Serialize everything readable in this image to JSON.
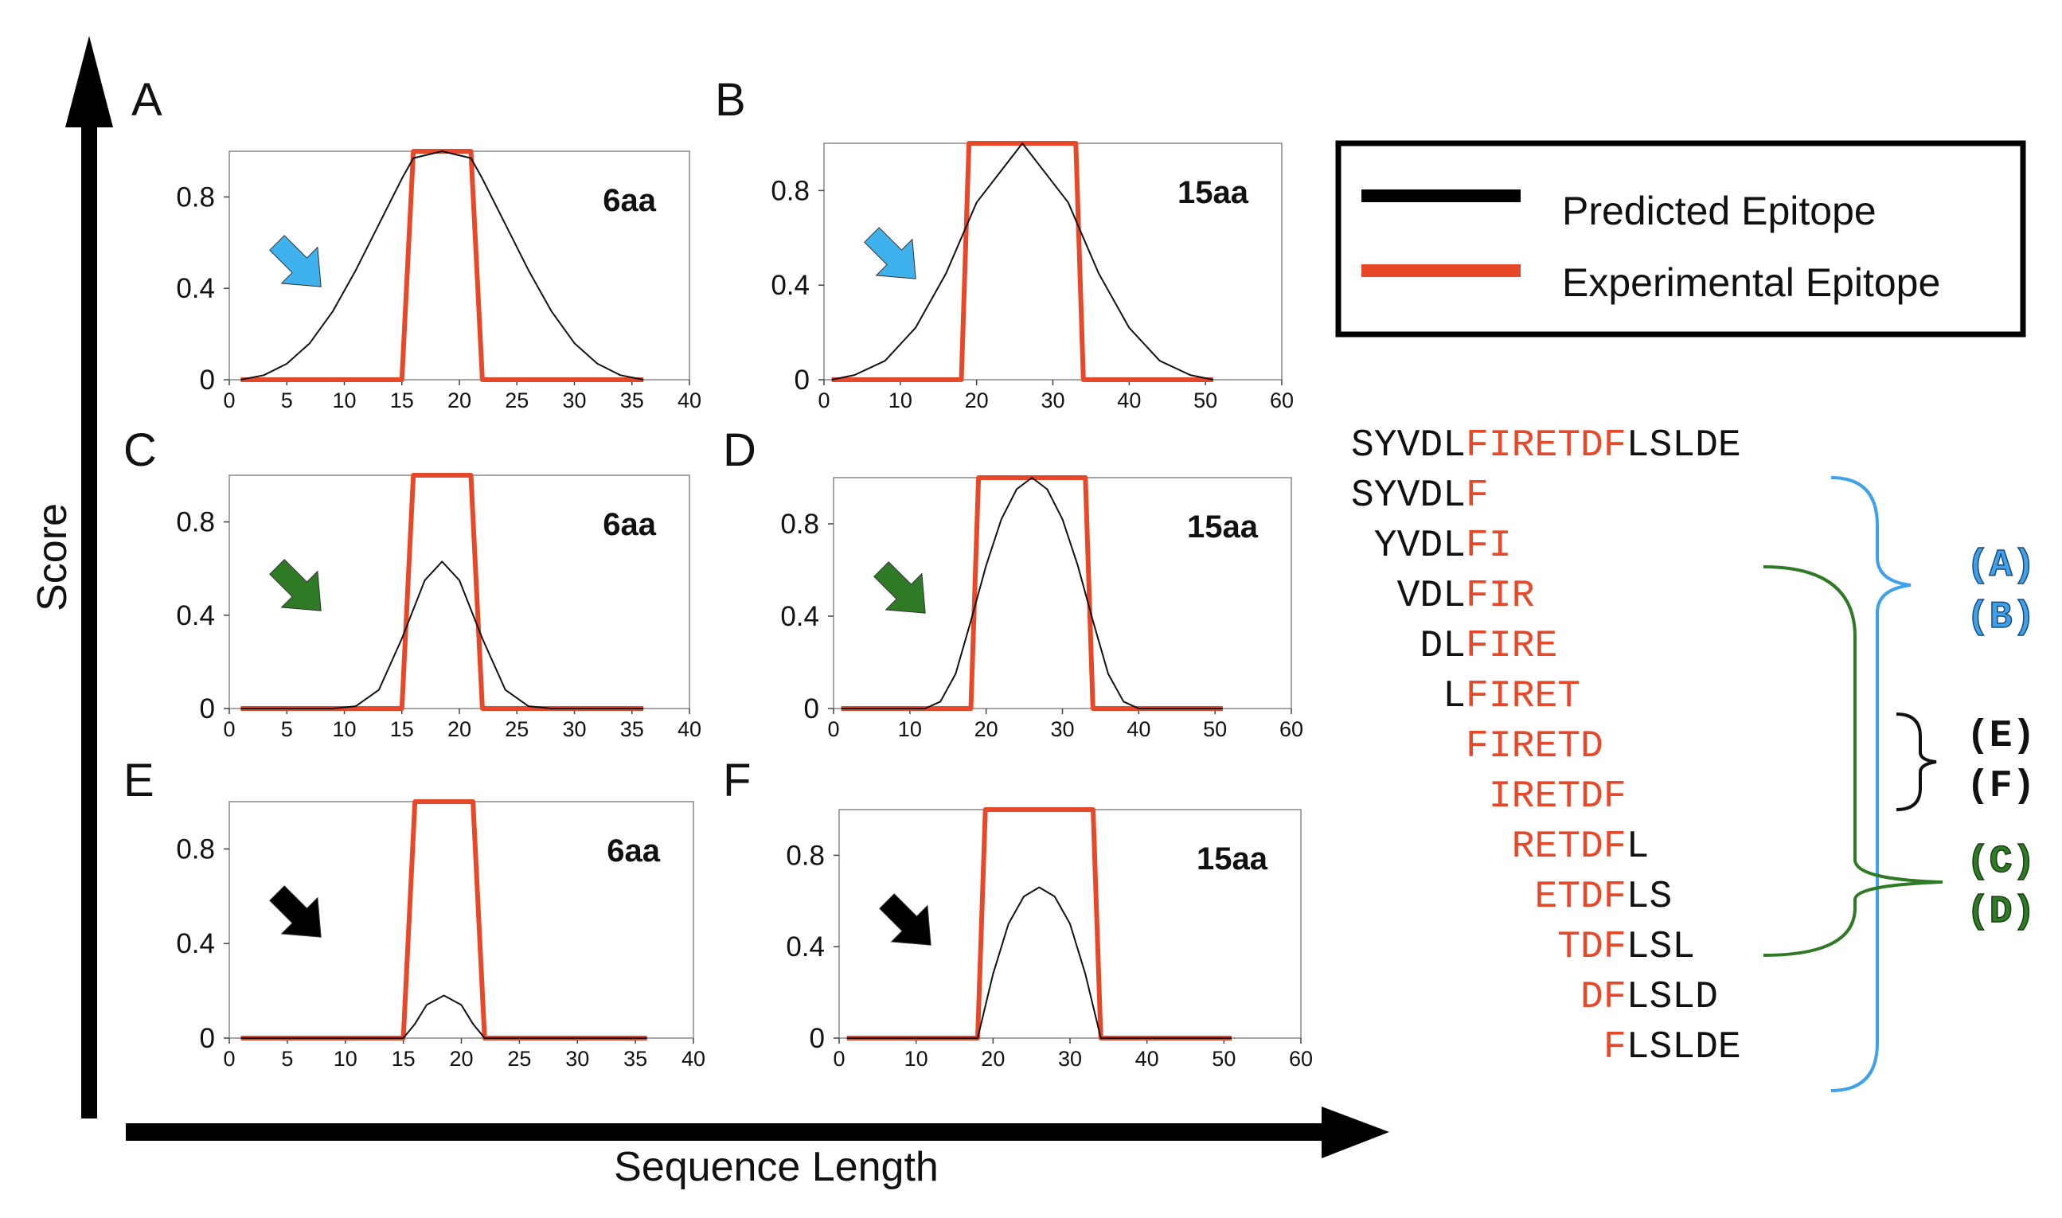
{
  "y_axis_title": "Score",
  "x_axis_title": "Sequence Length",
  "legend": [
    {
      "label": "Predicted Epitope",
      "color": "#000000"
    },
    {
      "label": "Experimental Epitope",
      "color": "#e8482a"
    }
  ],
  "colors": {
    "predicted": "#111111",
    "experimental": "#e8482a",
    "blue_arrow": "#3fb1ec",
    "green_arrow": "#2f7a25",
    "black_arrow": "#000000",
    "blue_bracket": "#3fa0ec",
    "green_bracket": "#2f7a25",
    "black_bracket": "#111111"
  },
  "chart_data": [
    {
      "type": "line",
      "panel": "A",
      "tag": "6aa",
      "arrow": "blue-arrow",
      "xlim": [
        0,
        40
      ],
      "xticks": [
        "0",
        "5",
        "10",
        "15",
        "20",
        "25",
        "30",
        "35",
        "40"
      ],
      "ylim": [
        0,
        1
      ],
      "yticks": [
        "0",
        "0.4",
        "0.8"
      ],
      "series": [
        {
          "name": "Predicted Epitope",
          "x": [
            1,
            3,
            5,
            7,
            9,
            11,
            13,
            15,
            16,
            18.5,
            21,
            22,
            24,
            26,
            28,
            30,
            32,
            34,
            36
          ],
          "y": [
            0,
            0.02,
            0.07,
            0.16,
            0.3,
            0.48,
            0.68,
            0.88,
            0.97,
            1,
            0.97,
            0.88,
            0.68,
            0.48,
            0.3,
            0.16,
            0.07,
            0.02,
            0
          ]
        },
        {
          "name": "Experimental Epitope",
          "x": [
            1,
            15,
            16,
            21,
            22,
            36
          ],
          "y": [
            0,
            0,
            1,
            1,
            0,
            0
          ]
        }
      ]
    },
    {
      "type": "line",
      "panel": "B",
      "tag": "15aa",
      "arrow": "blue-arrow",
      "xlim": [
        0,
        60
      ],
      "xticks": [
        "0",
        "10",
        "20",
        "30",
        "40",
        "50",
        "60"
      ],
      "ylim": [
        0,
        1
      ],
      "yticks": [
        "0",
        "0.4",
        "0.8"
      ],
      "series": [
        {
          "name": "Predicted Epitope",
          "x": [
            1,
            4,
            8,
            12,
            16,
            18,
            20,
            26,
            32,
            34,
            36,
            40,
            44,
            48,
            51
          ],
          "y": [
            0,
            0.02,
            0.08,
            0.22,
            0.45,
            0.6,
            0.75,
            1,
            0.75,
            0.6,
            0.45,
            0.22,
            0.08,
            0.02,
            0
          ]
        },
        {
          "name": "Experimental Epitope",
          "x": [
            1,
            18,
            19,
            33,
            34,
            51
          ],
          "y": [
            0,
            0,
            1,
            1,
            0,
            0
          ]
        }
      ]
    },
    {
      "type": "line",
      "panel": "C",
      "tag": "6aa",
      "arrow": "green-arrow",
      "xlim": [
        0,
        40
      ],
      "xticks": [
        "0",
        "5",
        "10",
        "15",
        "20",
        "25",
        "30",
        "35",
        "40"
      ],
      "ylim": [
        0,
        1
      ],
      "yticks": [
        "0",
        "0.4",
        "0.8"
      ],
      "series": [
        {
          "name": "Predicted Epitope",
          "x": [
            1,
            9,
            11,
            13,
            15,
            17,
            18.5,
            20,
            22,
            24,
            26,
            28,
            36
          ],
          "y": [
            0,
            0,
            0.01,
            0.08,
            0.3,
            0.55,
            0.63,
            0.55,
            0.3,
            0.08,
            0.01,
            0,
            0
          ]
        },
        {
          "name": "Experimental Epitope",
          "x": [
            1,
            15,
            16,
            21,
            22,
            36
          ],
          "y": [
            0,
            0,
            1,
            1,
            0,
            0
          ]
        }
      ]
    },
    {
      "type": "line",
      "panel": "D",
      "tag": "15aa",
      "arrow": "green-arrow",
      "xlim": [
        0,
        60
      ],
      "xticks": [
        "0",
        "10",
        "20",
        "30",
        "40",
        "50",
        "60"
      ],
      "ylim": [
        0,
        1
      ],
      "yticks": [
        "0",
        "0.4",
        "0.8"
      ],
      "series": [
        {
          "name": "Predicted Epitope",
          "x": [
            1,
            12,
            14,
            16,
            18,
            20,
            22,
            24,
            26,
            28,
            30,
            32,
            34,
            36,
            38,
            40,
            51
          ],
          "y": [
            0,
            0,
            0.03,
            0.15,
            0.38,
            0.62,
            0.82,
            0.95,
            1,
            0.95,
            0.82,
            0.62,
            0.38,
            0.15,
            0.03,
            0,
            0
          ]
        },
        {
          "name": "Experimental Epitope",
          "x": [
            1,
            18,
            19,
            33,
            34,
            51
          ],
          "y": [
            0,
            0,
            1,
            1,
            0,
            0
          ]
        }
      ]
    },
    {
      "type": "line",
      "panel": "E",
      "tag": "6aa",
      "arrow": "black-arrow",
      "xlim": [
        0,
        40
      ],
      "xticks": [
        "0",
        "5",
        "10",
        "15",
        "20",
        "25",
        "30",
        "35",
        "40"
      ],
      "ylim": [
        0,
        1
      ],
      "yticks": [
        "0",
        "0.4",
        "0.8"
      ],
      "series": [
        {
          "name": "Predicted Epitope",
          "x": [
            1,
            15,
            16,
            17,
            18.5,
            20,
            21,
            22,
            36
          ],
          "y": [
            0,
            0,
            0.06,
            0.14,
            0.18,
            0.14,
            0.06,
            0,
            0
          ]
        },
        {
          "name": "Experimental Epitope",
          "x": [
            1,
            15,
            16,
            21,
            22,
            36
          ],
          "y": [
            0,
            0,
            1,
            1,
            0,
            0
          ]
        }
      ]
    },
    {
      "type": "line",
      "panel": "F",
      "tag": "15aa",
      "arrow": "black-arrow",
      "xlim": [
        0,
        60
      ],
      "xticks": [
        "0",
        "10",
        "20",
        "30",
        "40",
        "50",
        "60"
      ],
      "ylim": [
        0,
        1
      ],
      "yticks": [
        "0",
        "0.4",
        "0.8"
      ],
      "series": [
        {
          "name": "Predicted Epitope",
          "x": [
            1,
            18,
            20,
            22,
            24,
            26,
            28,
            30,
            32,
            34,
            51
          ],
          "y": [
            0,
            0,
            0.28,
            0.5,
            0.62,
            0.66,
            0.62,
            0.5,
            0.28,
            0,
            0
          ]
        },
        {
          "name": "Experimental Epitope",
          "x": [
            1,
            18,
            19,
            33,
            34,
            51
          ],
          "y": [
            0,
            0,
            1,
            1,
            0,
            0
          ]
        }
      ]
    }
  ],
  "sequences": [
    {
      "black_prefix": "SYVDL",
      "red": "FIRETDF",
      "black_suffix": "LSLDE"
    },
    {
      "black_prefix": "SYVDL",
      "red": "F",
      "black_suffix": ""
    },
    {
      "black_prefix": " YVDL",
      "red": "FI",
      "black_suffix": ""
    },
    {
      "black_prefix": "  VDL",
      "red": "FIR",
      "black_suffix": ""
    },
    {
      "black_prefix": "   DL",
      "red": "FIRE",
      "black_suffix": ""
    },
    {
      "black_prefix": "    L",
      "red": "FIRET",
      "black_suffix": ""
    },
    {
      "black_prefix": "     ",
      "red": "FIRETD",
      "black_suffix": ""
    },
    {
      "black_prefix": "      ",
      "red": "IRETDF",
      "black_suffix": ""
    },
    {
      "black_prefix": "       ",
      "red": "RETDF",
      "black_suffix": "L"
    },
    {
      "black_prefix": "        ",
      "red": "ETDF",
      "black_suffix": "LS"
    },
    {
      "black_prefix": "         ",
      "red": "TDF",
      "black_suffix": "LSL"
    },
    {
      "black_prefix": "          ",
      "red": "DF",
      "black_suffix": "LSLD"
    },
    {
      "black_prefix": "           ",
      "red": "F",
      "black_suffix": "LSLDE"
    }
  ],
  "bracket_labels": {
    "blue": [
      "(A)",
      "(B)"
    ],
    "black": [
      "(E)",
      "(F)"
    ],
    "green": [
      "(C)",
      "(D)"
    ]
  }
}
